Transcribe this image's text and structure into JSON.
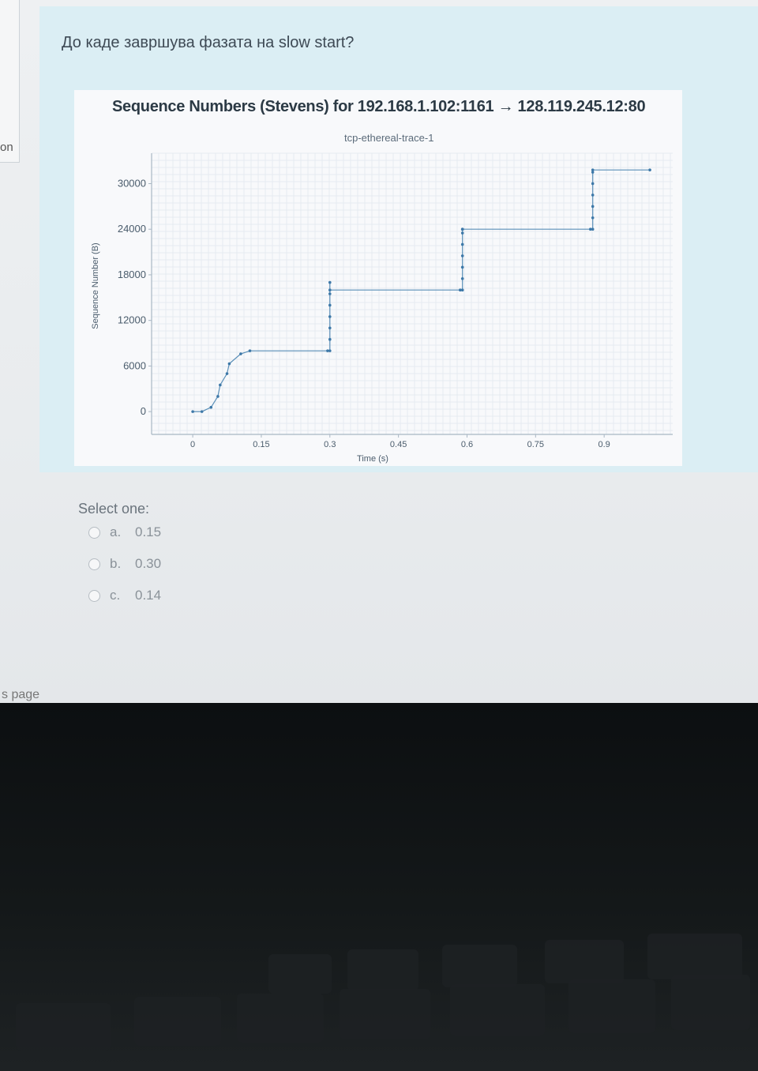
{
  "question": {
    "text": "До каде завршува фазата на slow start?"
  },
  "side": {
    "nav_fragment": "on",
    "footer_fragment": "s page"
  },
  "chart_data": {
    "type": "line",
    "title": "Sequence Numbers (Stevens) for 192.168.1.102:1161 → 128.119.245.12:80",
    "subtitle": "tcp-ethereal-trace-1",
    "xlabel": "Time (s)",
    "ylabel": "Sequence Number (B)",
    "x_ticks": [
      "0",
      "0.15",
      "0.3",
      "0.45",
      "0.6",
      "0.75",
      "0.9"
    ],
    "y_ticks": [
      "0",
      "6000",
      "12000",
      "18000",
      "24000",
      "30000"
    ],
    "xlim": [
      -0.09,
      1.05
    ],
    "ylim": [
      -3000,
      34000
    ],
    "grid": true,
    "series": [
      {
        "name": "segments",
        "x": [
          0.0,
          0.02,
          0.04,
          0.055,
          0.06,
          0.075,
          0.08,
          0.105,
          0.125,
          0.295,
          0.3,
          0.3,
          0.3,
          0.3,
          0.3,
          0.3,
          0.3,
          0.3,
          0.585,
          0.59,
          0.59,
          0.59,
          0.59,
          0.59,
          0.59,
          0.59,
          0.59,
          0.87,
          0.875,
          0.875,
          0.875,
          0.875,
          0.875,
          0.875,
          0.875,
          1.0
        ],
        "y": [
          0,
          0,
          566,
          2000,
          3500,
          5000,
          6300,
          7600,
          8000,
          8000,
          8000,
          9500,
          11000,
          12500,
          14000,
          15500,
          17000,
          16000,
          16000,
          16000,
          17500,
          19000,
          20500,
          22000,
          23500,
          24000,
          24000,
          24000,
          24000,
          25500,
          27000,
          28500,
          30000,
          31500,
          31800,
          31800
        ]
      }
    ]
  },
  "answer": {
    "select_label": "Select one:",
    "options": [
      {
        "letter": "a.",
        "value": "0.15"
      },
      {
        "letter": "b.",
        "value": "0.30"
      },
      {
        "letter": "c.",
        "value": "0.14"
      }
    ]
  }
}
